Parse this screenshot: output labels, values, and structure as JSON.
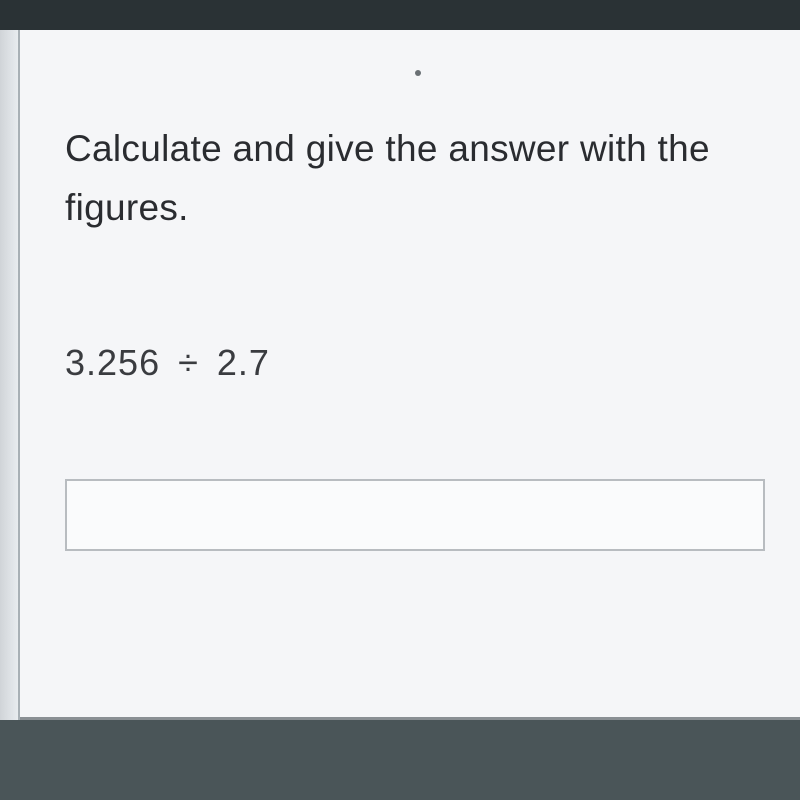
{
  "question": {
    "line1": "Calculate and give the answer with the",
    "line2": "figures."
  },
  "expression": {
    "operand1": "3.256",
    "operator": "÷",
    "operand2": "2.7"
  },
  "input": {
    "value": "",
    "placeholder": ""
  },
  "colors": {
    "page_background": "#4a5558",
    "content_background": "#f5f6f8",
    "text_color": "#2a2c30",
    "expression_color": "#3a3c40",
    "input_border": "#b8bcc0",
    "input_background": "#fafbfc",
    "top_bar": "#2a3235"
  },
  "typography": {
    "question_fontsize": 37,
    "expression_fontsize": 36,
    "font_family": "Segoe UI"
  }
}
